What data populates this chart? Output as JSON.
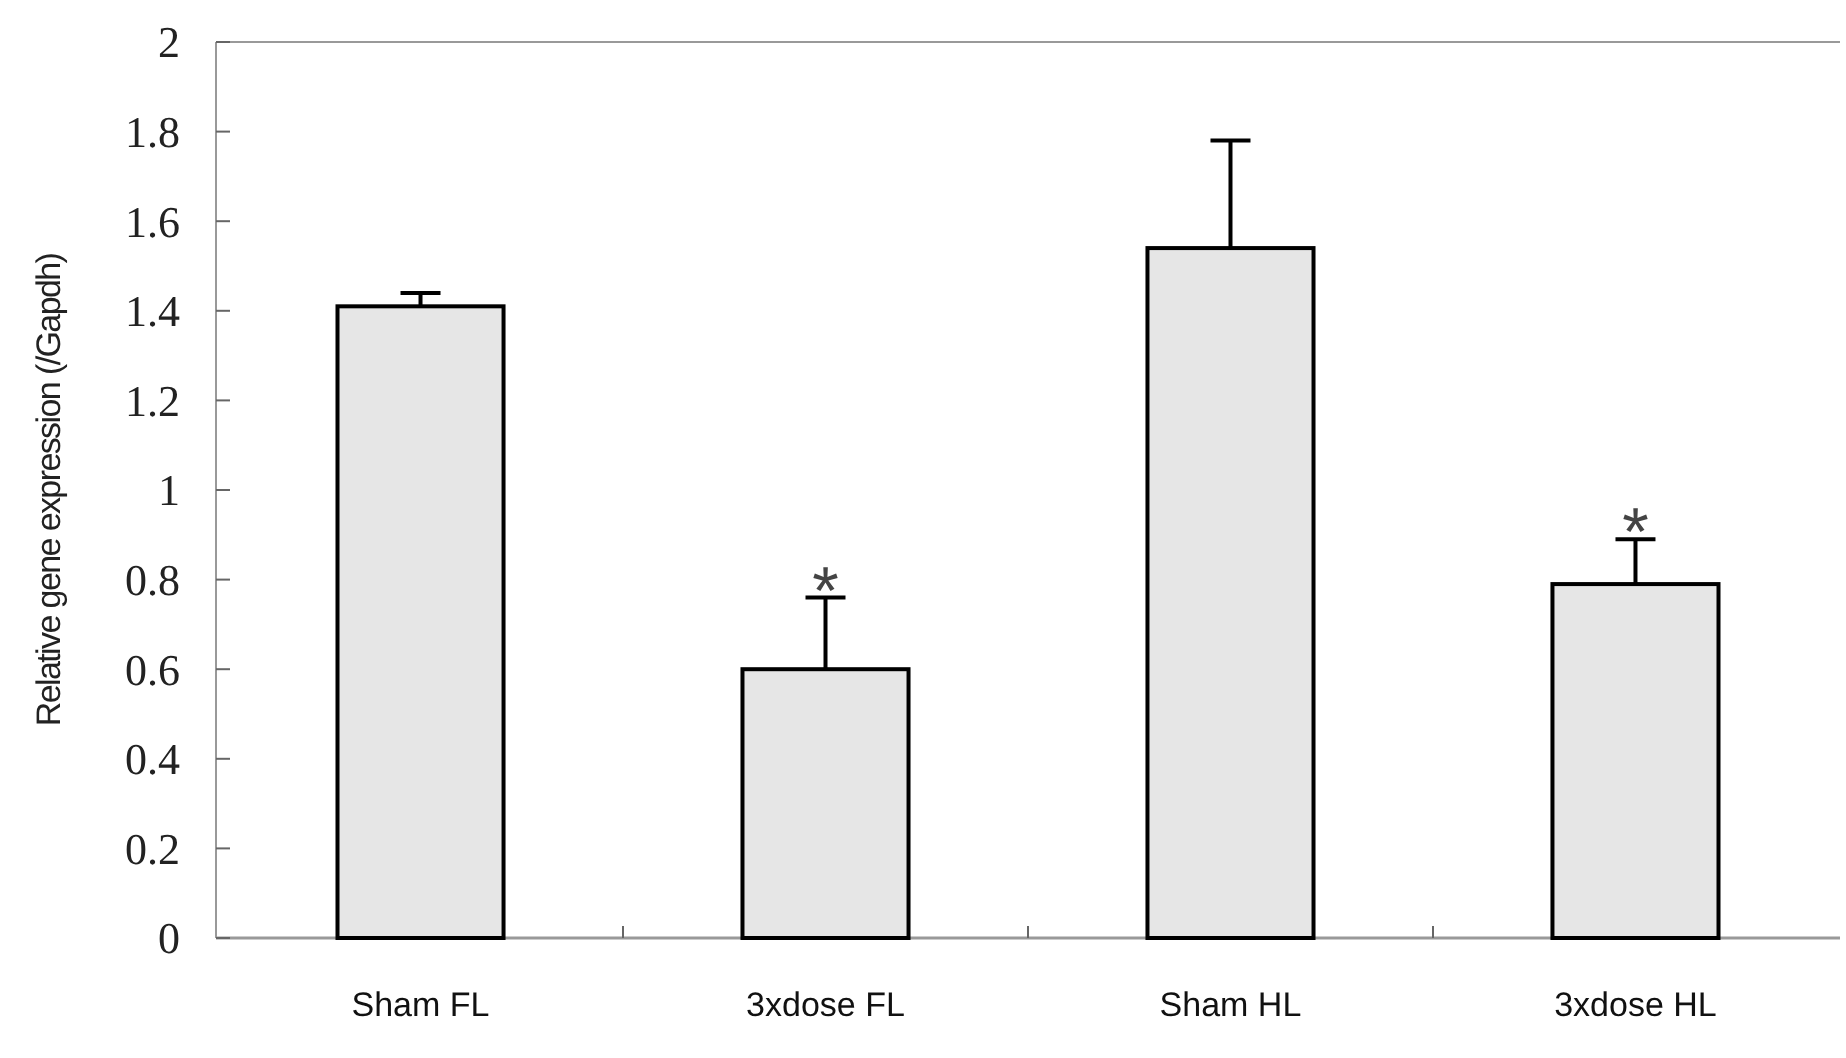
{
  "chart_data": {
    "type": "bar",
    "ylabel": "Relative gene expression (/Gapdh)",
    "categories": [
      "Sham FL",
      "3xdose FL",
      "Sham HL",
      "3xdose HL"
    ],
    "values": [
      1.41,
      0.6,
      1.54,
      0.79
    ],
    "color": "#e6e6e6",
    "errors": [
      [
        1.41,
        1.44
      ],
      [
        0.6,
        0.76
      ],
      [
        1.54,
        1.78
      ],
      [
        0.79,
        0.89
      ]
    ],
    "ylim": [
      0,
      2
    ],
    "yticks": [
      0,
      0.2,
      0.4,
      0.6,
      0.8,
      1,
      1.2,
      1.4,
      1.6,
      1.8,
      2
    ],
    "annotations": [
      {
        "text": "*",
        "x": "3xdose FL",
        "y": 0.76
      },
      {
        "text": "*",
        "x": "3xdose HL",
        "y": 0.89
      }
    ]
  }
}
